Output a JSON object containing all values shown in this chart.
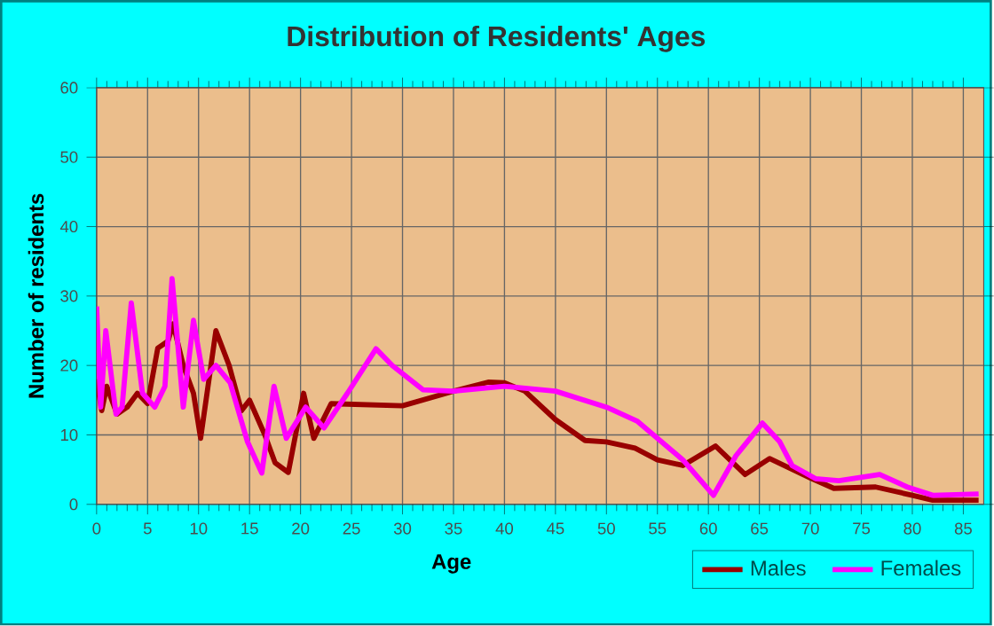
{
  "chart_data": {
    "type": "line",
    "title": "Distribution of Residents' Ages",
    "xlabel": "Age",
    "ylabel": "Number of residents",
    "xlim": [
      0,
      87
    ],
    "ylim": [
      0,
      60
    ],
    "xticks": [
      0,
      5,
      10,
      15,
      20,
      25,
      30,
      35,
      40,
      45,
      50,
      55,
      60,
      65,
      70,
      75,
      80,
      85
    ],
    "yticks": [
      0,
      10,
      20,
      30,
      40,
      50,
      60
    ],
    "grid": true,
    "legend": "bottom right",
    "series": [
      {
        "name": "Males",
        "color": "#990000",
        "x": [
          0,
          0.5,
          1,
          2,
          3,
          4,
          5,
          6,
          7,
          7.5,
          8.5,
          9.5,
          10.2,
          11.7,
          13,
          14.2,
          15,
          16.5,
          17.5,
          18.8,
          20.3,
          21.3,
          23,
          30,
          35,
          38.4,
          40,
          42,
          45,
          47.9,
          50,
          52.8,
          55,
          57.5,
          60.7,
          63.6,
          66,
          70,
          72.3,
          76.4,
          80,
          82,
          86.5
        ],
        "values": [
          18,
          13.5,
          17,
          13,
          14,
          16,
          14.5,
          22.5,
          23.5,
          26,
          20,
          16,
          9.5,
          25,
          20,
          13.5,
          15,
          10,
          6,
          4.6,
          16,
          9.5,
          14.5,
          14.2,
          16.3,
          17.6,
          17.5,
          16.3,
          12.2,
          9.2,
          9,
          8.1,
          6.4,
          5.6,
          8.4,
          4.3,
          6.6,
          3.8,
          2.3,
          2.5,
          1.3,
          0.6,
          0.6
        ]
      },
      {
        "name": "Females",
        "color": "#ff00ff",
        "x": [
          0,
          0.4,
          0.9,
          1.9,
          2.5,
          3.4,
          4.5,
          5.7,
          6.7,
          7.4,
          8.5,
          9.5,
          10.5,
          11.7,
          13.1,
          14.8,
          16.2,
          17.4,
          18.6,
          20.5,
          22.3,
          24.6,
          27.4,
          29,
          32,
          35,
          40,
          45,
          50,
          53,
          57.5,
          60.5,
          62.7,
          65.3,
          67,
          68.2,
          70.5,
          72.8,
          76.8,
          79.5,
          82,
          86.5
        ],
        "values": [
          28.5,
          14,
          25,
          13,
          14,
          29,
          16,
          14,
          17,
          32.5,
          14,
          26.5,
          18,
          20,
          17.5,
          9,
          4.5,
          17,
          9.5,
          14,
          11,
          16,
          22.4,
          20,
          16.5,
          16.3,
          17,
          16.3,
          14,
          12,
          6.4,
          1.3,
          7,
          11.7,
          9,
          5.6,
          3.7,
          3.4,
          4.3,
          2.5,
          1.3,
          1.5
        ]
      }
    ]
  }
}
